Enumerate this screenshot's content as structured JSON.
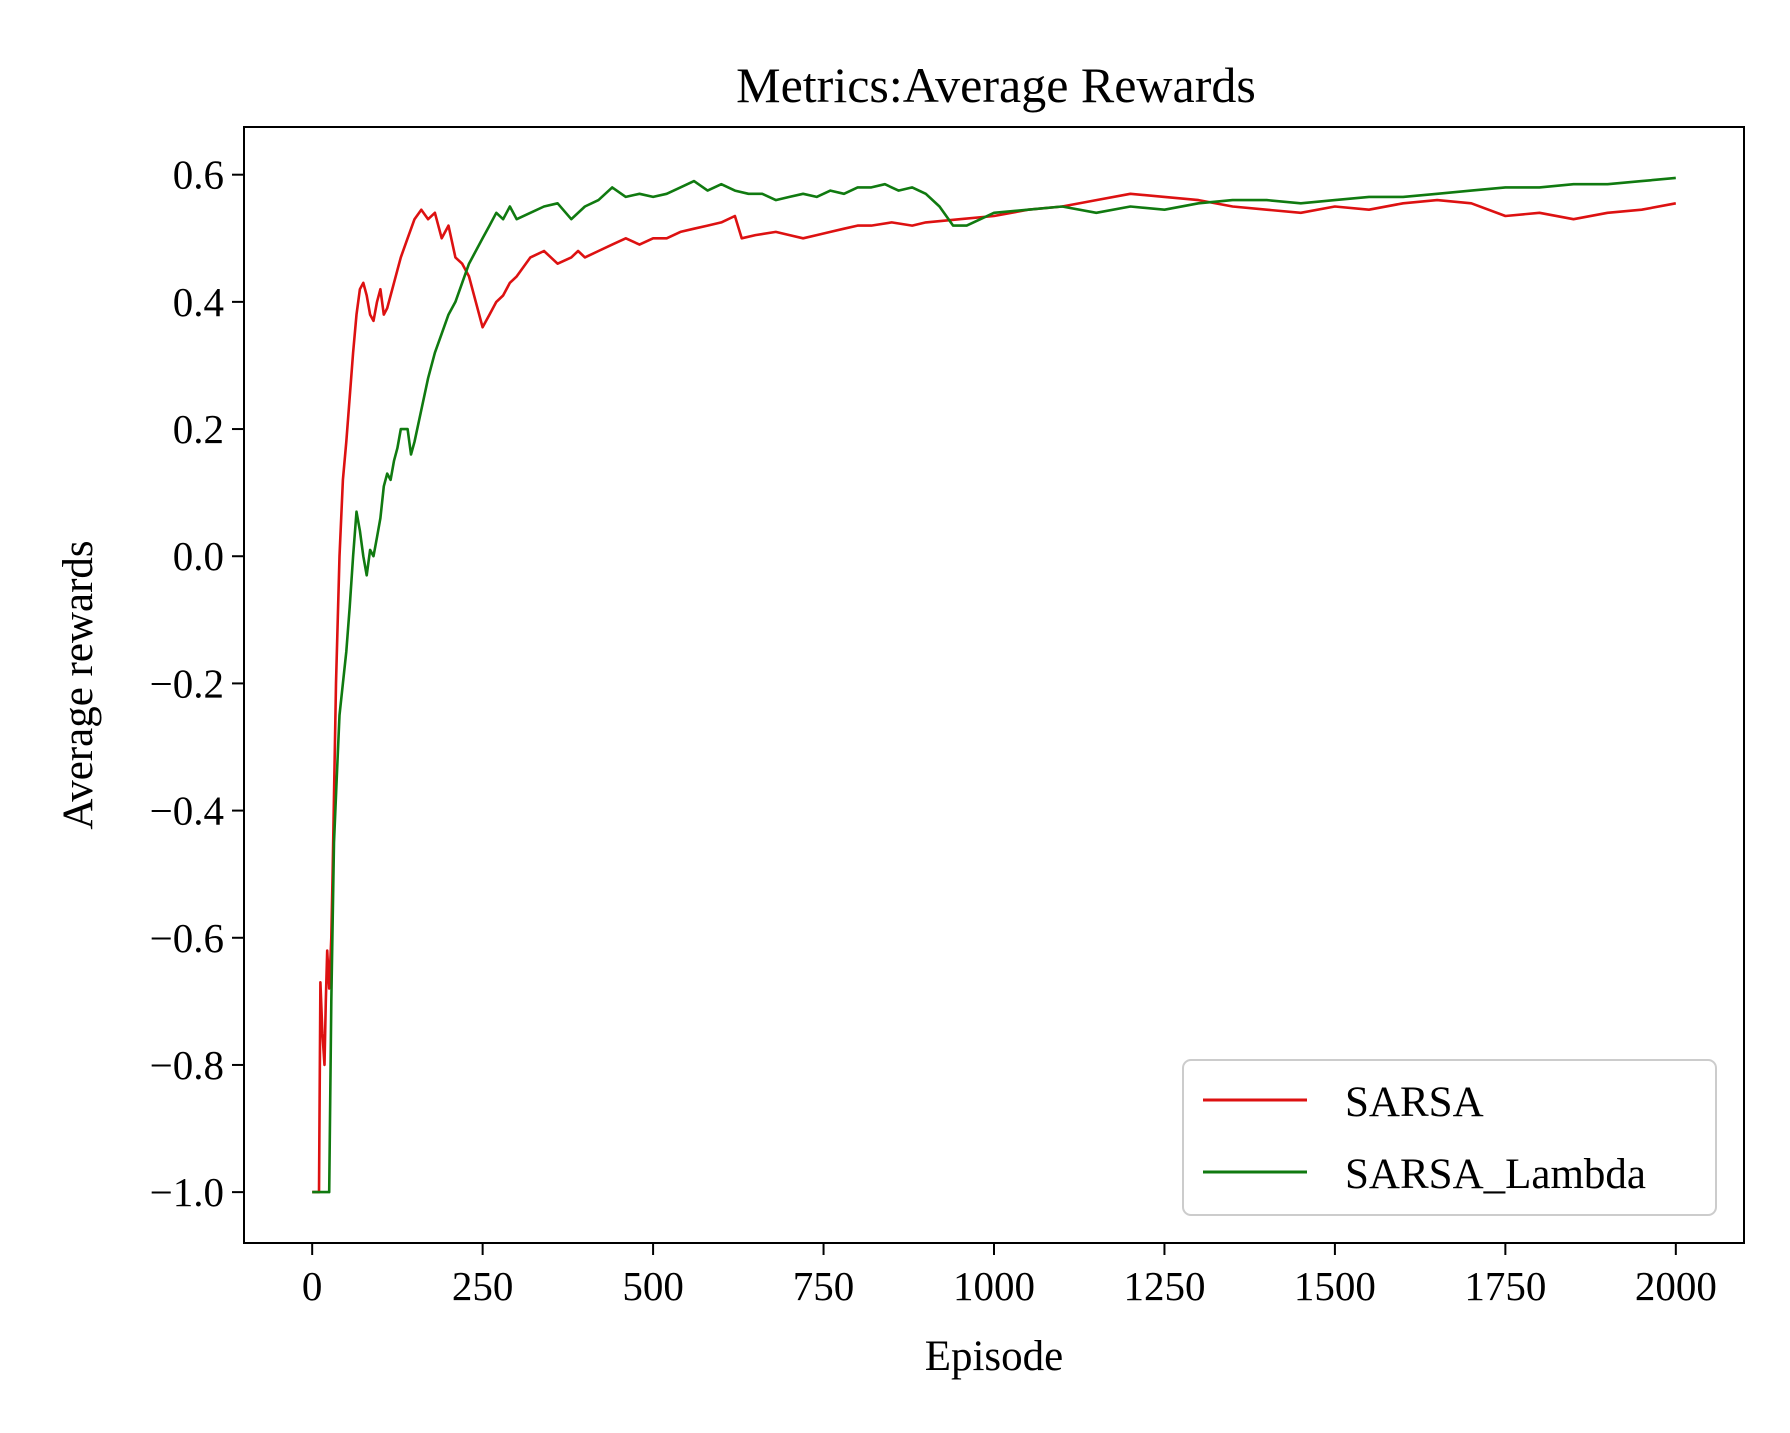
{
  "chart_data": {
    "type": "line",
    "title": "Metrics:Average Rewards",
    "xlabel": "Episode",
    "ylabel": "Average rewards",
    "xlim": [
      -100,
      2100
    ],
    "ylim": [
      -1.08,
      0.675
    ],
    "xticks": [
      0,
      250,
      500,
      750,
      1000,
      1250,
      1500,
      1750,
      2000
    ],
    "xtick_labels": [
      "0",
      "250",
      "500",
      "750",
      "1000",
      "1250",
      "1500",
      "1750",
      "2000"
    ],
    "yticks": [
      -1.0,
      -0.8,
      -0.6,
      -0.4,
      -0.2,
      0.0,
      0.2,
      0.4,
      0.6
    ],
    "ytick_labels": [
      "−1.0",
      "−0.8",
      "−0.6",
      "−0.4",
      "−0.2",
      "0.0",
      "0.2",
      "0.4",
      "0.6"
    ],
    "grid": false,
    "legend_position": "lower-right",
    "series": [
      {
        "name": "SARSA",
        "color": "#dd1111",
        "x": [
          0,
          10,
          12,
          15,
          18,
          20,
          22,
          25,
          28,
          30,
          35,
          40,
          45,
          50,
          55,
          60,
          65,
          70,
          75,
          80,
          85,
          90,
          95,
          100,
          105,
          110,
          115,
          120,
          125,
          130,
          140,
          150,
          160,
          170,
          180,
          185,
          190,
          200,
          210,
          220,
          230,
          235,
          240,
          250,
          260,
          270,
          280,
          290,
          300,
          320,
          340,
          360,
          380,
          390,
          400,
          420,
          440,
          460,
          480,
          500,
          520,
          540,
          560,
          580,
          600,
          620,
          630,
          650,
          680,
          700,
          720,
          740,
          760,
          780,
          800,
          820,
          850,
          880,
          900,
          950,
          1000,
          1050,
          1100,
          1150,
          1200,
          1250,
          1300,
          1350,
          1400,
          1450,
          1500,
          1550,
          1600,
          1650,
          1700,
          1750,
          1800,
          1850,
          1900,
          1950,
          2000
        ],
        "y": [
          -1.0,
          -1.0,
          -0.67,
          -0.75,
          -0.8,
          -0.7,
          -0.62,
          -0.68,
          -0.6,
          -0.5,
          -0.2,
          0.0,
          0.12,
          0.18,
          0.25,
          0.32,
          0.38,
          0.42,
          0.43,
          0.41,
          0.38,
          0.37,
          0.4,
          0.42,
          0.38,
          0.39,
          0.41,
          0.43,
          0.45,
          0.47,
          0.5,
          0.53,
          0.545,
          0.53,
          0.54,
          0.52,
          0.5,
          0.52,
          0.47,
          0.46,
          0.44,
          0.42,
          0.4,
          0.36,
          0.38,
          0.4,
          0.41,
          0.43,
          0.44,
          0.47,
          0.48,
          0.46,
          0.47,
          0.48,
          0.47,
          0.48,
          0.49,
          0.5,
          0.49,
          0.5,
          0.5,
          0.51,
          0.515,
          0.52,
          0.525,
          0.535,
          0.5,
          0.505,
          0.51,
          0.505,
          0.5,
          0.505,
          0.51,
          0.515,
          0.52,
          0.52,
          0.525,
          0.52,
          0.525,
          0.53,
          0.535,
          0.545,
          0.55,
          0.56,
          0.57,
          0.565,
          0.56,
          0.55,
          0.545,
          0.54,
          0.55,
          0.545,
          0.555,
          0.56,
          0.555,
          0.535,
          0.54,
          0.53,
          0.54,
          0.545,
          0.555
        ]
      },
      {
        "name": "SARSA_Lambda",
        "color": "#107a10",
        "x": [
          0,
          25,
          28,
          32,
          36,
          40,
          45,
          50,
          55,
          60,
          65,
          70,
          75,
          80,
          85,
          90,
          95,
          100,
          105,
          110,
          115,
          120,
          125,
          130,
          140,
          145,
          150,
          160,
          170,
          180,
          190,
          200,
          210,
          220,
          230,
          250,
          260,
          270,
          280,
          290,
          300,
          320,
          340,
          360,
          380,
          400,
          420,
          440,
          460,
          480,
          500,
          520,
          540,
          560,
          580,
          600,
          620,
          640,
          660,
          680,
          700,
          720,
          740,
          760,
          780,
          800,
          820,
          840,
          860,
          880,
          900,
          920,
          940,
          960,
          980,
          1000,
          1050,
          1100,
          1150,
          1200,
          1250,
          1300,
          1350,
          1400,
          1450,
          1500,
          1550,
          1600,
          1650,
          1700,
          1750,
          1800,
          1850,
          1900,
          1950,
          2000
        ],
        "y": [
          -1.0,
          -1.0,
          -0.7,
          -0.45,
          -0.35,
          -0.25,
          -0.2,
          -0.15,
          -0.08,
          0.0,
          0.07,
          0.04,
          0.0,
          -0.03,
          0.01,
          0.0,
          0.03,
          0.06,
          0.11,
          0.13,
          0.12,
          0.15,
          0.17,
          0.2,
          0.2,
          0.16,
          0.18,
          0.23,
          0.28,
          0.32,
          0.35,
          0.38,
          0.4,
          0.43,
          0.46,
          0.5,
          0.52,
          0.54,
          0.53,
          0.55,
          0.53,
          0.54,
          0.55,
          0.555,
          0.53,
          0.55,
          0.56,
          0.58,
          0.565,
          0.57,
          0.565,
          0.57,
          0.58,
          0.59,
          0.575,
          0.585,
          0.575,
          0.57,
          0.57,
          0.56,
          0.565,
          0.57,
          0.565,
          0.575,
          0.57,
          0.58,
          0.58,
          0.585,
          0.575,
          0.58,
          0.57,
          0.55,
          0.52,
          0.52,
          0.53,
          0.54,
          0.545,
          0.55,
          0.54,
          0.55,
          0.545,
          0.555,
          0.56,
          0.56,
          0.555,
          0.56,
          0.565,
          0.565,
          0.57,
          0.575,
          0.58,
          0.58,
          0.585,
          0.585,
          0.59,
          0.595
        ]
      }
    ]
  }
}
